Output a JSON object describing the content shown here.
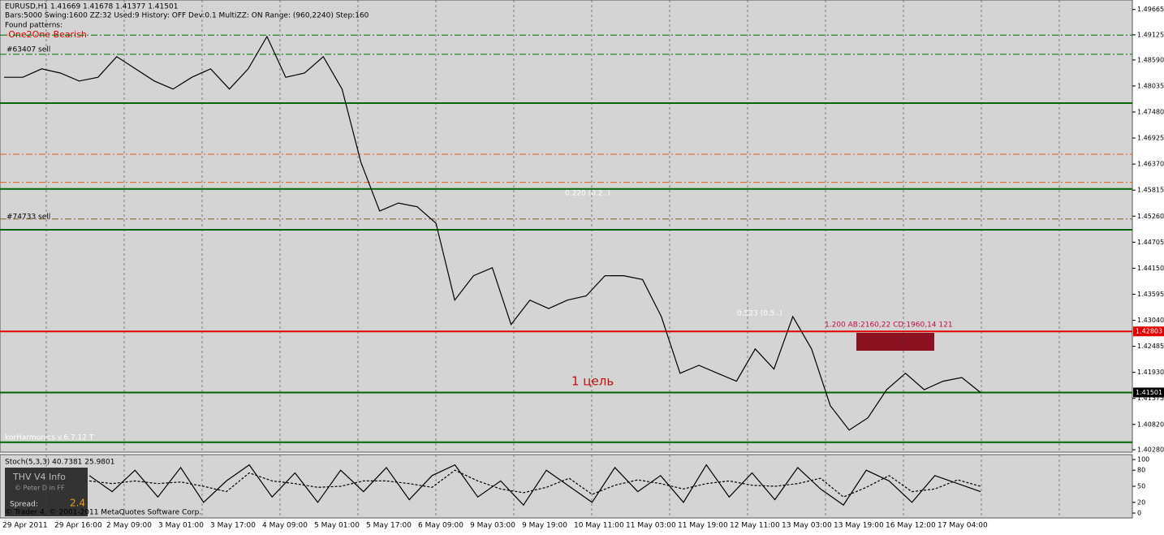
{
  "header": {
    "symbol_line": "EURUSD,H1  1.41669 1.41678 1.41377 1.41501",
    "settings_line": "Bars:5000  Swing:1600  ZZ:32  Used:9  History: OFF Dev:0.1  MultiZZ: ON  Range: (960,2240)  Step:160",
    "patterns_title": "Found patterns:",
    "pattern": "-One2One Bearish"
  },
  "annotations": {
    "order1": "#63407 sell",
    "order2": "#74733 sell",
    "fib1": "0.220 (0.2..)",
    "target": "1 цель",
    "fib2": "0.523 (0.5..)",
    "pattern_info": "1.200  AB:2160,22 CD:1960,14  121",
    "indicator": "korHarmonics v.6.7.12 T"
  },
  "info_box": {
    "title": "THV  V4  Info",
    "author": "© Peter D in FF",
    "spread_label": "Spread:",
    "spread": "2.4"
  },
  "copyright": "© Trader 4, © 2001-2011 MetaQuotes Software Corp.",
  "chart_data": [
    {
      "type": "line",
      "ylim": [
        1.40228,
        1.49868
      ],
      "yticks": [
        1.49665,
        1.49125,
        {
          "value": 1.4859,
          "label": "1.48590"
        },
        1.48035,
        {
          "value": 1.4748,
          "label": "1.47480"
        },
        1.46925,
        {
          "value": 1.4637,
          "label": "1.46370"
        },
        1.45815,
        {
          "value": 1.4526,
          "label": "1.45260"
        },
        1.44705,
        {
          "value": 1.4415,
          "label": "1.44150"
        },
        1.43595,
        {
          "value": 1.4304,
          "label": "1.43040"
        },
        1.42485,
        {
          "value": 1.4193,
          "label": "1.41930"
        },
        1.41375,
        {
          "value": 1.4082,
          "label": "1.40820"
        },
        {
          "value": 1.4028,
          "label": "1.40280"
        }
      ],
      "price_tags": [
        {
          "value": 1.42803,
          "label": "1.42803",
          "color": "#e00000"
        },
        {
          "value": 1.41501,
          "label": "1.41501",
          "color": "#000000"
        }
      ],
      "levels": [
        {
          "value": 1.4912,
          "color": "#007000",
          "dashed": true
        },
        {
          "value": 1.4871,
          "color": "#007000",
          "dashed": true
        },
        {
          "value": 1.4767,
          "color": "#006400",
          "dashed": false
        },
        {
          "value": 1.4658,
          "color": "#e06020",
          "dashed": true
        },
        {
          "value": 1.4598,
          "color": "#e06020",
          "dashed": true
        },
        {
          "value": 1.4584,
          "color": "#006400",
          "dashed": false
        },
        {
          "value": 1.452,
          "color": "#806020",
          "dashed": true
        },
        {
          "value": 1.4497,
          "color": "#006400",
          "dashed": false
        },
        {
          "value": 1.42803,
          "color": "#e00000",
          "dashed": false
        },
        {
          "value": 1.415,
          "color": "#006400",
          "dashed": false
        },
        {
          "value": 1.4044,
          "color": "#006400",
          "dashed": false
        }
      ],
      "x_labels": [
        "29 Apr 2011",
        "29 Apr 16:00",
        "2 May 09:00",
        "3 May 01:00",
        "3 May 17:00",
        "4 May 09:00",
        "5 May 01:00",
        "5 May 17:00",
        "6 May 09:00",
        "9 May 03:00",
        "9 May 19:00",
        "10 May 11:00",
        "11 May 03:00",
        "11 May 19:00",
        "12 May 11:00",
        "13 May 03:00",
        "13 May 19:00",
        "16 May 12:00",
        "17 May 04:00"
      ],
      "series": [
        {
          "name": "EURUSD",
          "color": "#000000",
          "values": [
            1.4822,
            1.4822,
            1.484,
            1.4831,
            1.4814,
            1.4822,
            1.4866,
            1.484,
            1.4814,
            1.4797,
            1.4822,
            1.484,
            1.4797,
            1.484,
            1.4909,
            1.4822,
            1.4831,
            1.4866,
            1.4797,
            1.4641,
            1.4537,
            1.4554,
            1.4546,
            1.4511,
            1.4347,
            1.4399,
            1.4416,
            1.4295,
            1.4347,
            1.4329,
            1.4347,
            1.4356,
            1.4399,
            1.4399,
            1.4391,
            1.4312,
            1.4191,
            1.4208,
            1.4191,
            1.4174,
            1.4243,
            1.42,
            1.4312,
            1.4243,
            1.4122,
            1.407,
            1.4096,
            1.4156,
            1.4191,
            1.4156,
            1.4174,
            1.4182,
            1.415
          ]
        }
      ]
    },
    {
      "type": "line",
      "title": "Stoch(5,3,3) 40.7381 25.9801",
      "ylim": [
        0,
        100
      ],
      "yticks": [
        100,
        80,
        50,
        20,
        0
      ],
      "series": [
        {
          "name": "main",
          "color": "#000000",
          "values": [
            70,
            40,
            80,
            30,
            85,
            20,
            60,
            90,
            30,
            75,
            20,
            80,
            40,
            85,
            25,
            70,
            90,
            30,
            60,
            15,
            80,
            50,
            20,
            85,
            40,
            70,
            20,
            90,
            30,
            75,
            25,
            85,
            45,
            15,
            80,
            60,
            20,
            70,
            55,
            40
          ]
        },
        {
          "name": "signal",
          "color": "#000000",
          "values": [
            60,
            55,
            60,
            55,
            58,
            50,
            40,
            75,
            60,
            55,
            48,
            50,
            60,
            60,
            55,
            48,
            80,
            60,
            45,
            38,
            48,
            65,
            35,
            52,
            62,
            55,
            45,
            55,
            60,
            52,
            50,
            55,
            65,
            30,
            48,
            70,
            40,
            45,
            62,
            50
          ]
        }
      ]
    }
  ]
}
